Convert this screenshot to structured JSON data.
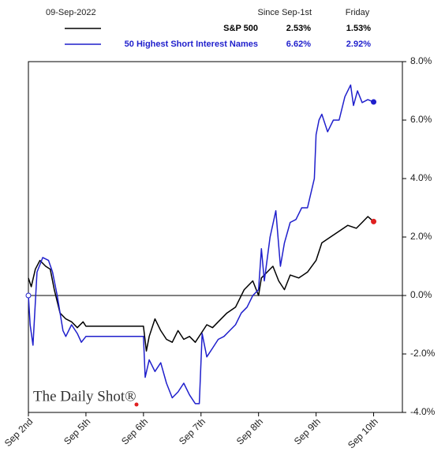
{
  "chart_data": {
    "type": "line",
    "date_label": "09-Sep-2022",
    "columns": [
      "Since Sep-1st",
      "Friday"
    ],
    "watermark": "The Daily Shot®",
    "xlim": [
      0,
      6.5
    ],
    "xticks": [
      {
        "value": 0,
        "label": "Sep 2nd"
      },
      {
        "value": 1,
        "label": "Sep 5th"
      },
      {
        "value": 2,
        "label": "Sep 6th"
      },
      {
        "value": 3,
        "label": "Sep 7th"
      },
      {
        "value": 4,
        "label": "Sep 8th"
      },
      {
        "value": 5,
        "label": "Sep 9th"
      },
      {
        "value": 6,
        "label": "Sep 10th"
      }
    ],
    "ylim": [
      -4,
      8
    ],
    "yticks": [
      {
        "value": 8,
        "label": "8.0%"
      },
      {
        "value": 6,
        "label": "6.0%"
      },
      {
        "value": 4,
        "label": "4.0%"
      },
      {
        "value": 2,
        "label": "2.0%"
      },
      {
        "value": 0,
        "label": "0.0%"
      },
      {
        "value": -2,
        "label": "-2.0%"
      },
      {
        "value": -4,
        "label": "-4.0%"
      }
    ],
    "zero_line": true,
    "series": [
      {
        "name": "S&P 500",
        "color": "#000000",
        "marker_color": "#e02020",
        "stats": [
          "2.53%",
          "1.53%"
        ],
        "x": [
          0,
          0.05,
          0.12,
          0.2,
          0.3,
          0.38,
          0.45,
          0.55,
          0.65,
          0.75,
          0.85,
          0.95,
          1.0,
          2.0,
          2.05,
          2.1,
          2.2,
          2.3,
          2.4,
          2.5,
          2.6,
          2.7,
          2.8,
          2.9,
          3.0,
          3.1,
          3.2,
          3.3,
          3.45,
          3.6,
          3.75,
          3.9,
          4.0,
          4.05,
          4.15,
          4.25,
          4.35,
          4.45,
          4.55,
          4.7,
          4.85,
          5.0,
          5.1,
          5.25,
          5.4,
          5.55,
          5.7,
          5.8,
          5.9,
          6.0
        ],
        "values": [
          0.6,
          0.3,
          0.9,
          1.2,
          1.0,
          0.9,
          0.2,
          -0.6,
          -0.8,
          -0.9,
          -1.1,
          -0.9,
          -1.05,
          -1.05,
          -1.9,
          -1.4,
          -0.8,
          -1.2,
          -1.5,
          -1.6,
          -1.2,
          -1.5,
          -1.4,
          -1.6,
          -1.3,
          -1.0,
          -1.1,
          -0.9,
          -0.6,
          -0.4,
          0.2,
          0.5,
          0.0,
          0.6,
          0.8,
          1.0,
          0.5,
          0.2,
          0.7,
          0.6,
          0.8,
          1.2,
          1.8,
          2.0,
          2.2,
          2.4,
          2.3,
          2.5,
          2.7,
          2.53
        ]
      },
      {
        "name": "50 Highest Short Interest Names",
        "color": "#1f1fcc",
        "marker_color": "#1f1fcc",
        "stats": [
          "6.62%",
          "2.92%"
        ],
        "x": [
          0,
          0.03,
          0.08,
          0.15,
          0.25,
          0.35,
          0.42,
          0.5,
          0.6,
          0.65,
          0.75,
          0.85,
          0.92,
          1.0,
          2.0,
          2.03,
          2.1,
          2.2,
          2.3,
          2.4,
          2.5,
          2.6,
          2.7,
          2.8,
          2.9,
          2.97,
          3.02,
          3.1,
          3.2,
          3.3,
          3.4,
          3.5,
          3.6,
          3.7,
          3.8,
          3.9,
          4.0,
          4.05,
          4.1,
          4.2,
          4.3,
          4.38,
          4.45,
          4.55,
          4.65,
          4.75,
          4.85,
          4.97,
          5.0,
          5.05,
          5.1,
          5.2,
          5.3,
          5.4,
          5.5,
          5.6,
          5.65,
          5.72,
          5.8,
          5.9,
          6.0
        ],
        "values": [
          0.0,
          -1.0,
          -1.7,
          0.8,
          1.3,
          1.2,
          0.8,
          0.0,
          -1.2,
          -1.4,
          -1.0,
          -1.3,
          -1.6,
          -1.4,
          -1.4,
          -2.8,
          -2.2,
          -2.6,
          -2.3,
          -3.0,
          -3.5,
          -3.3,
          -3.0,
          -3.4,
          -3.7,
          -3.7,
          -1.3,
          -2.1,
          -1.8,
          -1.5,
          -1.4,
          -1.2,
          -1.0,
          -0.6,
          -0.4,
          0.0,
          0.2,
          1.6,
          0.5,
          2.0,
          2.9,
          1.0,
          1.8,
          2.5,
          2.6,
          3.0,
          3.0,
          4.0,
          5.5,
          6.0,
          6.2,
          5.6,
          6.0,
          6.0,
          6.8,
          7.2,
          6.5,
          7.0,
          6.6,
          6.7,
          6.62
        ]
      }
    ]
  }
}
